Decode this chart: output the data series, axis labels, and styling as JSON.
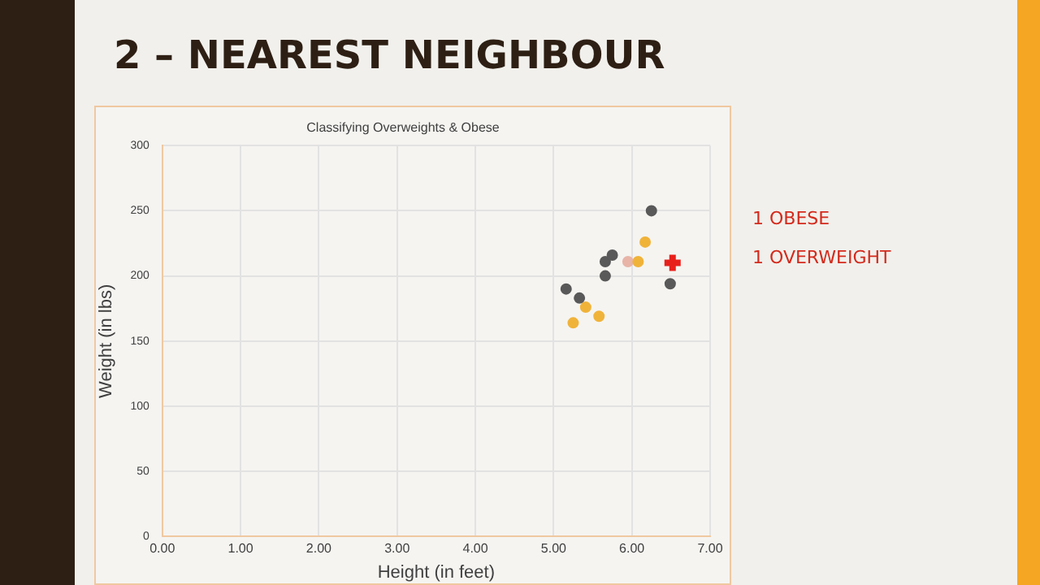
{
  "chart_data": {
    "type": "scatter",
    "title": "2 – NEAREST NEIGHBOUR",
    "subtitle": "Classifying Overweights & Obese",
    "xlabel": "Height (in feet)",
    "ylabel": "Weight (in lbs)",
    "xlim": [
      0,
      7
    ],
    "xticks": [
      {
        "value": 0,
        "label": "0.00"
      },
      {
        "value": 1,
        "label": "1.00"
      },
      {
        "value": 2,
        "label": "2.00"
      },
      {
        "value": 3,
        "label": "3.00"
      },
      {
        "value": 4,
        "label": "4.00"
      },
      {
        "value": 5,
        "label": "5.00"
      },
      {
        "value": 6,
        "label": "6.00"
      },
      {
        "value": 7,
        "label": "7.00"
      }
    ],
    "ylim": [
      0,
      300
    ],
    "yticks": [
      0,
      50,
      100,
      150,
      200,
      250,
      300
    ],
    "grid": true,
    "marker": "circle",
    "series": [
      {
        "color": "#595959",
        "x": [
          5.16,
          5.33,
          5.66,
          5.66,
          5.75,
          6.25,
          6.49
        ],
        "values": [
          190,
          183,
          200,
          211,
          216,
          250,
          194
        ]
      },
      {
        "color": "#f0b33a",
        "x": [
          5.25,
          5.41,
          5.58,
          6.08,
          6.17
        ],
        "values": [
          164,
          176,
          169,
          211,
          226
        ]
      },
      {
        "color": "#e8b4a8",
        "x": [
          5.95
        ],
        "values": [
          211
        ]
      },
      {
        "color": "#e8201c",
        "marker": "cross",
        "x": [
          6.52
        ],
        "values": [
          210
        ]
      }
    ],
    "annotations": [
      "1 OBESE",
      "1 OVERWEIGHT"
    ]
  }
}
